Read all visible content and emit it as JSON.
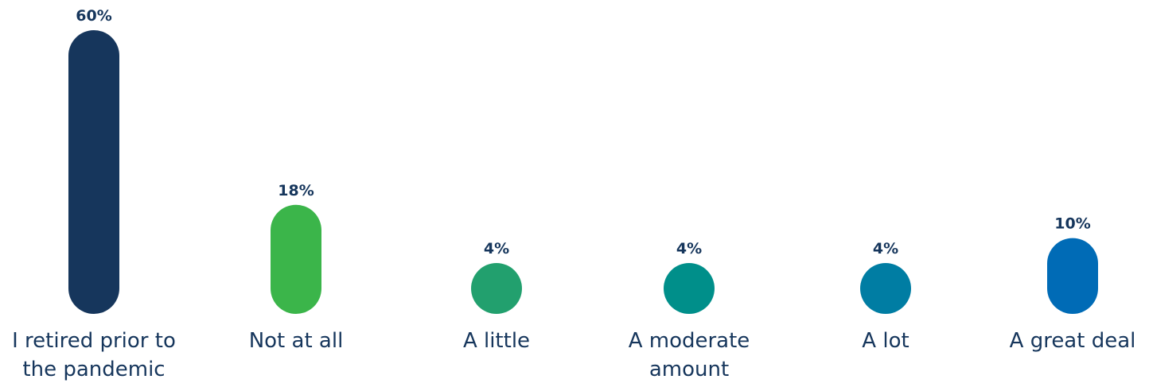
{
  "chart_data": {
    "type": "bar",
    "title": "",
    "xlabel": "",
    "ylabel": "",
    "ylim": [
      0,
      60
    ],
    "grid": false,
    "legend": "none",
    "categories": [
      [
        "I retired prior to",
        "the pandemic"
      ],
      [
        "Not at all"
      ],
      [
        "A little"
      ],
      [
        "A moderate",
        "amount"
      ],
      [
        "A lot"
      ],
      [
        "A great deal"
      ]
    ],
    "values": [
      60,
      18,
      4,
      4,
      4,
      10
    ],
    "value_labels": [
      "60%",
      "18%",
      "4%",
      "4%",
      "4%",
      "10%"
    ],
    "colors": [
      "#16365c",
      "#3bb54a",
      "#22a06e",
      "#008f8a",
      "#007da3",
      "#006bb6"
    ]
  }
}
